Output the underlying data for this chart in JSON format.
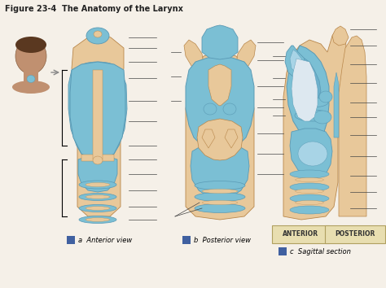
{
  "title": "Figure 23-4  The Anatomy of the Larynx",
  "title_fontsize": 7.0,
  "title_fontweight": "bold",
  "bg_color": "#f5f0e8",
  "fig_width": 4.74,
  "fig_height": 3.54,
  "dpi": 100,
  "caption_a": "Anterior view",
  "caption_b": "Posterior view",
  "caption_c": "Sagittal section",
  "anterior_label": "ANTERIOR",
  "posterior_label": "POSTERIOR",
  "blue": "#7bbfd4",
  "blue_light": "#a8d4e6",
  "blue_dark": "#5a9ab5",
  "blue_mid": "#6db0cc",
  "tan": "#d4a87a",
  "tan_light": "#e8c89a",
  "tan_dark": "#b8864a",
  "skin_face": "#c8956e",
  "white_bg": "#f5f0e8",
  "label_line_color": "#444444",
  "sq_color": "#4060a0"
}
